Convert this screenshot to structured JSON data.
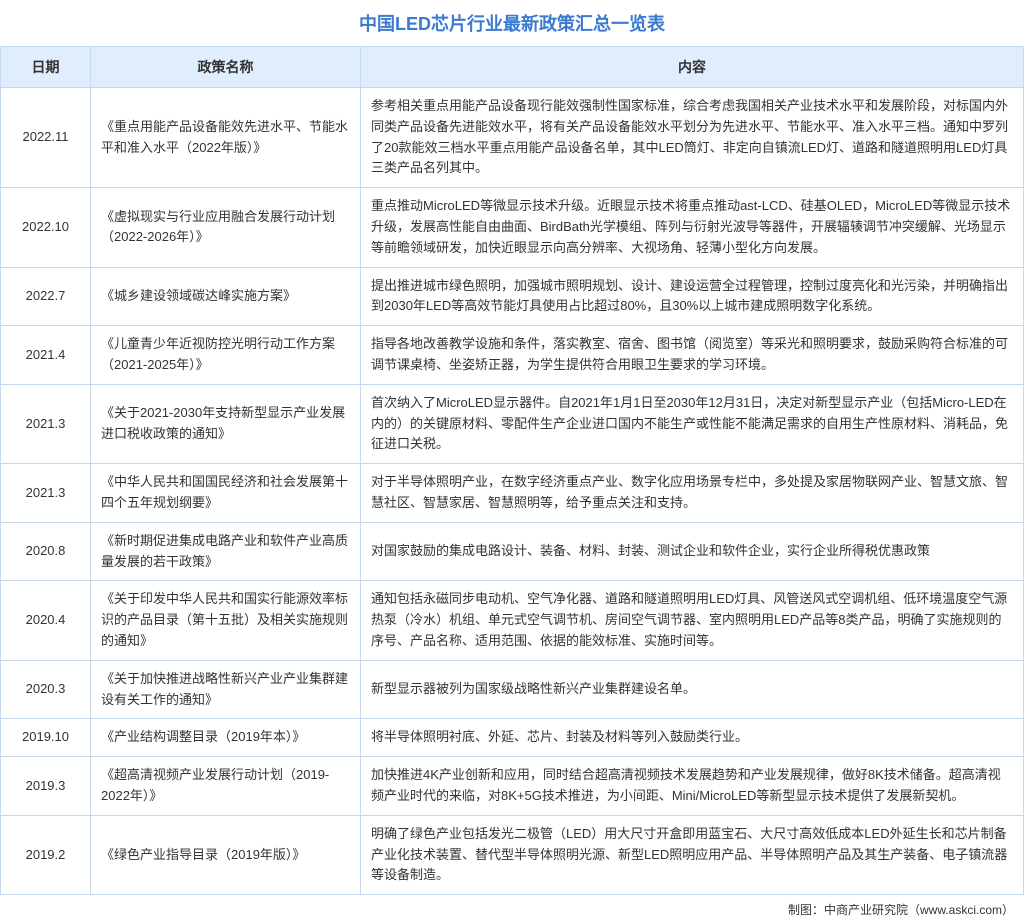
{
  "title": "中国LED芯片行业最新政策汇总一览表",
  "columns": {
    "date": "日期",
    "policy": "政策名称",
    "content": "内容"
  },
  "rows": [
    {
      "date": "2022.11",
      "policy": "《重点用能产品设备能效先进水平、节能水平和准入水平（2022年版）》",
      "content": "参考相关重点用能产品设备现行能效强制性国家标准，综合考虑我国相关产业技术水平和发展阶段，对标国内外同类产品设备先进能效水平，将有关产品设备能效水平划分为先进水平、节能水平、准入水平三档。通知中罗列了20款能效三档水平重点用能产品设备名单，其中LED筒灯、非定向自镇流LED灯、道路和隧道照明用LED灯具三类产品名列其中。"
    },
    {
      "date": "2022.10",
      "policy": "《虚拟现实与行业应用融合发展行动计划（2022-2026年）》",
      "content": "重点推动MicroLED等微显示技术升级。近眼显示技术将重点推动ast-LCD、硅基OLED，MicroLED等微显示技术升级，发展高性能自由曲面、BirdBath光学模组、阵列与衍射光波导等器件，开展辐辏调节冲突缓解、光场显示等前瞻领域研发，加快近眼显示向高分辨率、大视场角、轻薄小型化方向发展。"
    },
    {
      "date": "2022.7",
      "policy": "《城乡建设领域碳达峰实施方案》",
      "content": "提出推进城市绿色照明，加强城市照明规划、设计、建设运营全过程管理，控制过度亮化和光污染，并明确指出到2030年LED等高效节能灯具使用占比超过80%，且30%以上城市建成照明数字化系统。"
    },
    {
      "date": "2021.4",
      "policy": "《儿童青少年近视防控光明行动工作方案（2021-2025年）》",
      "content": "指导各地改善教学设施和条件，落实教室、宿舍、图书馆（阅览室）等采光和照明要求，鼓励采购符合标准的可调节课桌椅、坐姿矫正器，为学生提供符合用眼卫生要求的学习环境。"
    },
    {
      "date": "2021.3",
      "policy": "《关于2021-2030年支持新型显示产业发展进口税收政策的通知》",
      "content": "首次纳入了MicroLED显示器件。自2021年1月1日至2030年12月31日，决定对新型显示产业（包括Micro-LED在内的）的关键原材料、零配件生产企业进口国内不能生产或性能不能满足需求的自用生产性原材料、消耗品，免征进口关税。"
    },
    {
      "date": "2021.3",
      "policy": "《中华人民共和国国民经济和社会发展第十四个五年规划纲要》",
      "content": "对于半导体照明产业，在数字经济重点产业、数字化应用场景专栏中，多处提及家居物联网产业、智慧文旅、智慧社区、智慧家居、智慧照明等，给予重点关注和支持。"
    },
    {
      "date": "2020.8",
      "policy": "《新时期促进集成电路产业和软件产业高质量发展的若干政策》",
      "content": "对国家鼓励的集成电路设计、装备、材料、封装、测试企业和软件企业，实行企业所得税优惠政策"
    },
    {
      "date": "2020.4",
      "policy": "《关于印发中华人民共和国实行能源效率标识的产品目录（第十五批）及相关实施规则的通知》",
      "content": "通知包括永磁同步电动机、空气净化器、道路和隧道照明用LED灯具、风管送风式空调机组、低环境温度空气源热泵（冷水）机组、单元式空气调节机、房间空气调节器、室内照明用LED产品等8类产品，明确了实施规则的序号、产品名称、适用范围、依据的能效标准、实施时间等。"
    },
    {
      "date": "2020.3",
      "policy": "《关于加快推进战略性新兴产业产业集群建设有关工作的通知》",
      "content": "新型显示器被列为国家级战略性新兴产业集群建设名单。"
    },
    {
      "date": "2019.10",
      "policy": "《产业结构调整目录（2019年本）》",
      "content": "将半导体照明衬底、外延、芯片、封装及材料等列入鼓励类行业。"
    },
    {
      "date": "2019.3",
      "policy": "《超高清视频产业发展行动计划（2019-2022年）》",
      "content": "加快推进4K产业创新和应用，同时结合超高清视频技术发展趋势和产业发展规律，做好8K技术储备。超高清视频产业时代的来临，对8K+5G技术推进，为小间距、Mini/MicroLED等新型显示技术提供了发展新契机。"
    },
    {
      "date": "2019.2",
      "policy": "《绿色产业指导目录（2019年版）》",
      "content": "明确了绿色产业包括发光二极管（LED）用大尺寸开盒即用蓝宝石、大尺寸高效低成本LED外延生长和芯片制备产业化技术装置、替代型半导体照明光源、新型LED照明应用产品、半导体照明产品及其生产装备、电子镇流器等设备制造。"
    }
  ],
  "footer": "制图：中商产业研究院（www.askci.com）",
  "styling": {
    "title_color": "#3a7ad0",
    "header_bg": "#e0edfc",
    "border_color": "#c6d9ef",
    "text_color": "#333333",
    "title_fontsize": 18,
    "header_fontsize": 14,
    "cell_fontsize": 13,
    "footer_fontsize": 12,
    "col_date_width": 90,
    "col_policy_width": 270
  }
}
